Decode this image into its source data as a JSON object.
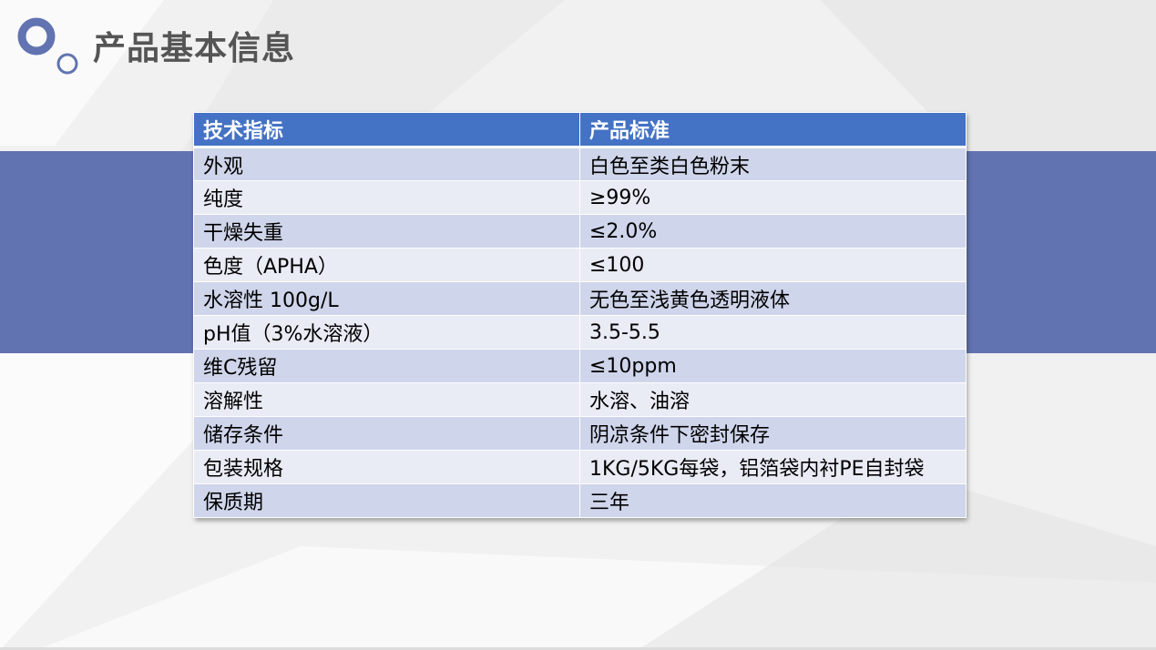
{
  "slide": {
    "title": "产品基本信息"
  },
  "colors": {
    "accent": "#6173b0",
    "header": "#4472c4",
    "row_odd": "#cfd5ea",
    "row_even": "#e9ebf5",
    "title_text": "#555555"
  },
  "icons": [
    "circles-logo-icon"
  ],
  "table": {
    "headers": [
      "技术指标",
      "产品标准"
    ],
    "rows": [
      [
        "外观",
        "白色至类白色粉末"
      ],
      [
        "纯度",
        "≥99%"
      ],
      [
        "干燥失重",
        "≤2.0%"
      ],
      [
        "色度（APHA）",
        "≤100"
      ],
      [
        "水溶性 100g/L",
        "无色至浅黄色透明液体"
      ],
      [
        "pH值（3%水溶液）",
        "3.5-5.5"
      ],
      [
        "维C残留",
        "≤10ppm"
      ],
      [
        "溶解性",
        "水溶、油溶"
      ],
      [
        "储存条件",
        "阴凉条件下密封保存"
      ],
      [
        "包装规格",
        "1KG/5KG每袋，铝箔袋内衬PE自封袋"
      ],
      [
        "保质期",
        "三年"
      ]
    ]
  }
}
